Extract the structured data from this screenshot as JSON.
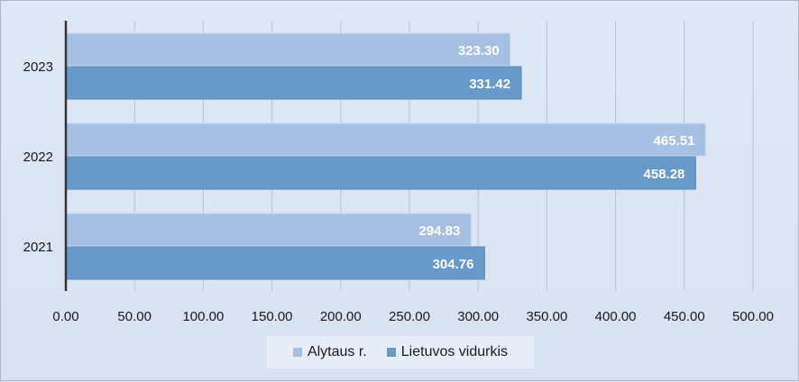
{
  "chart_data": {
    "type": "bar",
    "orientation": "horizontal",
    "categories": [
      "2023",
      "2022",
      "2021"
    ],
    "series": [
      {
        "name": "Alytaus r.",
        "color": "#a6c0e4",
        "values": [
          323.3,
          465.51,
          294.83
        ]
      },
      {
        "name": "Lietuvos vidurkis",
        "color": "#6799c9",
        "values": [
          331.42,
          458.28,
          304.76
        ]
      }
    ],
    "xlim": [
      0,
      500
    ],
    "x_ticks": [
      "0.00",
      "50.00",
      "100.00",
      "150.00",
      "200.00",
      "250.00",
      "300.00",
      "350.00",
      "400.00",
      "450.00",
      "500.00"
    ],
    "data_labels": [
      [
        "323.30",
        "465.51",
        "294.83"
      ],
      [
        "331.42",
        "458.28",
        "304.76"
      ]
    ],
    "grid": true,
    "legend_position": "bottom"
  }
}
